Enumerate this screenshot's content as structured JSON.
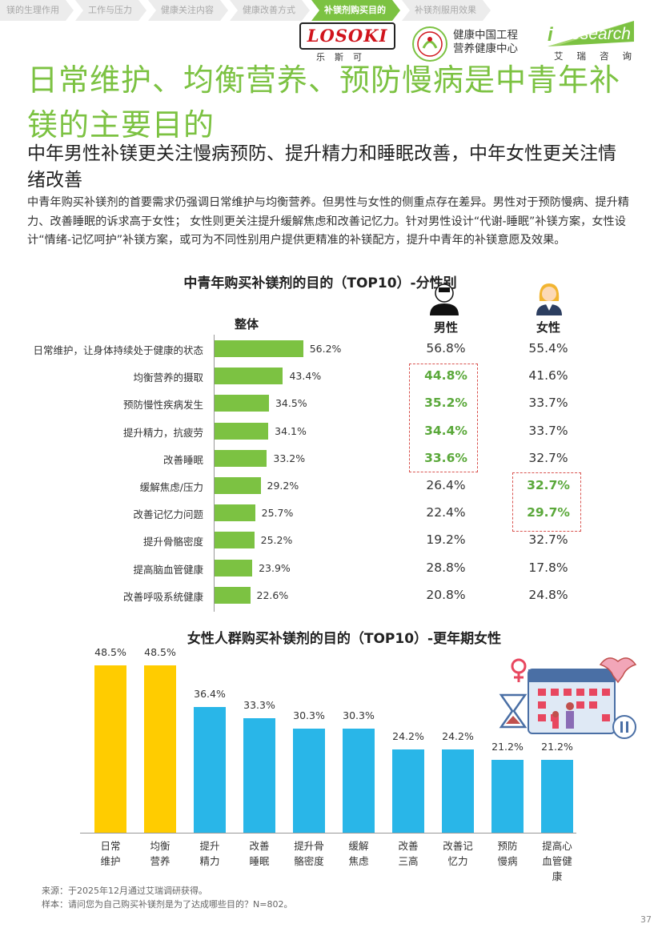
{
  "nav": [
    "镁的生理作用",
    "工作与压力",
    "健康关注内容",
    "健康改善方式",
    "补镁剂购买目的",
    "补镁剂服用效果"
  ],
  "nav_active": 4,
  "logos": {
    "losoki": "LOSOKI",
    "losoki_sub": "乐斯可",
    "health_center": [
      "健康中国工程",
      "营养健康中心"
    ],
    "iresearch_i": "i",
    "iresearch": "Research",
    "iresearch_sub": "艾瑞咨询"
  },
  "title": "日常维护、均衡营养、预防慢病是中青年补镁的主要目的",
  "subtitle": "中年男性补镁更关注慢病预防、提升精力和睡眠改善，中年女性更关注情绪改善",
  "description": "中青年购买补镁剂的首要需求仍强调日常维护与均衡营养。但男性与女性的侧重点存在差异。男性对于预防慢病、提升精力、改善睡眠的诉求高于女性； 女性则更关注提升缓解焦虑和改善记忆力。针对男性设计“代谢-睡眠”补镁方案，女性设计“情绪-记忆呵护”补镁方案，或可为不同性别用户提供更精准的补镁配方，提升中青年的补镁意愿及效果。",
  "colors": {
    "brand_green": "#7cc242",
    "highlight_green": "#5aa83a",
    "yellow": "#ffcc00",
    "blue": "#29b6e8",
    "dash_red": "#d9534f"
  },
  "chart_data": [
    {
      "type": "bar",
      "title": "中青年购买补镁剂的目的（TOP10）-分性别",
      "columns": [
        "整体",
        "男性",
        "女性"
      ],
      "categories": [
        "日常维护，让身体持续处于健康的状态",
        "均衡营养的摄取",
        "预防慢性疾病发生",
        "提升精力，抗疲劳",
        "改善睡眠",
        "缓解焦虑/压力",
        "改善记忆力问题",
        "提升骨骼密度",
        "提高脑血管健康",
        "改善呼吸系统健康"
      ],
      "series": [
        {
          "name": "整体",
          "values": [
            56.2,
            43.4,
            34.5,
            34.1,
            33.2,
            29.2,
            25.7,
            25.2,
            23.9,
            22.6
          ]
        },
        {
          "name": "男性",
          "values": [
            56.8,
            44.8,
            35.2,
            34.4,
            33.6,
            26.4,
            22.4,
            19.2,
            28.8,
            20.8
          ]
        },
        {
          "name": "女性",
          "values": [
            55.4,
            41.6,
            33.7,
            33.7,
            32.7,
            32.7,
            29.7,
            32.7,
            17.8,
            24.8
          ]
        }
      ],
      "highlight_men": [
        1,
        2,
        3,
        4
      ],
      "highlight_women": [
        5,
        6
      ],
      "unit": "%"
    },
    {
      "type": "bar",
      "title": "女性人群购买补镁剂的目的（TOP10）-更年期女性",
      "categories": [
        "日常维护",
        "均衡营养",
        "提升精力",
        "改善睡眠",
        "提升骨骼密度",
        "缓解焦虑",
        "改善三高",
        "改善记忆力",
        "预防慢病",
        "提高心血管健康"
      ],
      "category_lines": [
        [
          "日常",
          "维护"
        ],
        [
          "均衡",
          "营养"
        ],
        [
          "提升",
          "精力"
        ],
        [
          "改善",
          "睡眠"
        ],
        [
          "提升骨",
          "骼密度"
        ],
        [
          "缓解",
          "焦虑"
        ],
        [
          "改善",
          "三高"
        ],
        [
          "改善记",
          "忆力"
        ],
        [
          "预防",
          "慢病"
        ],
        [
          "提高心",
          "血管健",
          "康"
        ]
      ],
      "values": [
        48.5,
        48.5,
        36.4,
        33.3,
        30.3,
        30.3,
        24.2,
        24.2,
        21.2,
        21.2
      ],
      "bar_colors": [
        "#ffcc00",
        "#ffcc00",
        "#29b6e8",
        "#29b6e8",
        "#29b6e8",
        "#29b6e8",
        "#29b6e8",
        "#29b6e8",
        "#29b6e8",
        "#29b6e8"
      ],
      "unit": "%"
    }
  ],
  "footer": {
    "source": "来源：于2025年12月通过艾瑞调研获得。",
    "sample": "样本：请问您为自己购买补镁剂是为了达成哪些目的？N=802。"
  },
  "page_number": "37"
}
